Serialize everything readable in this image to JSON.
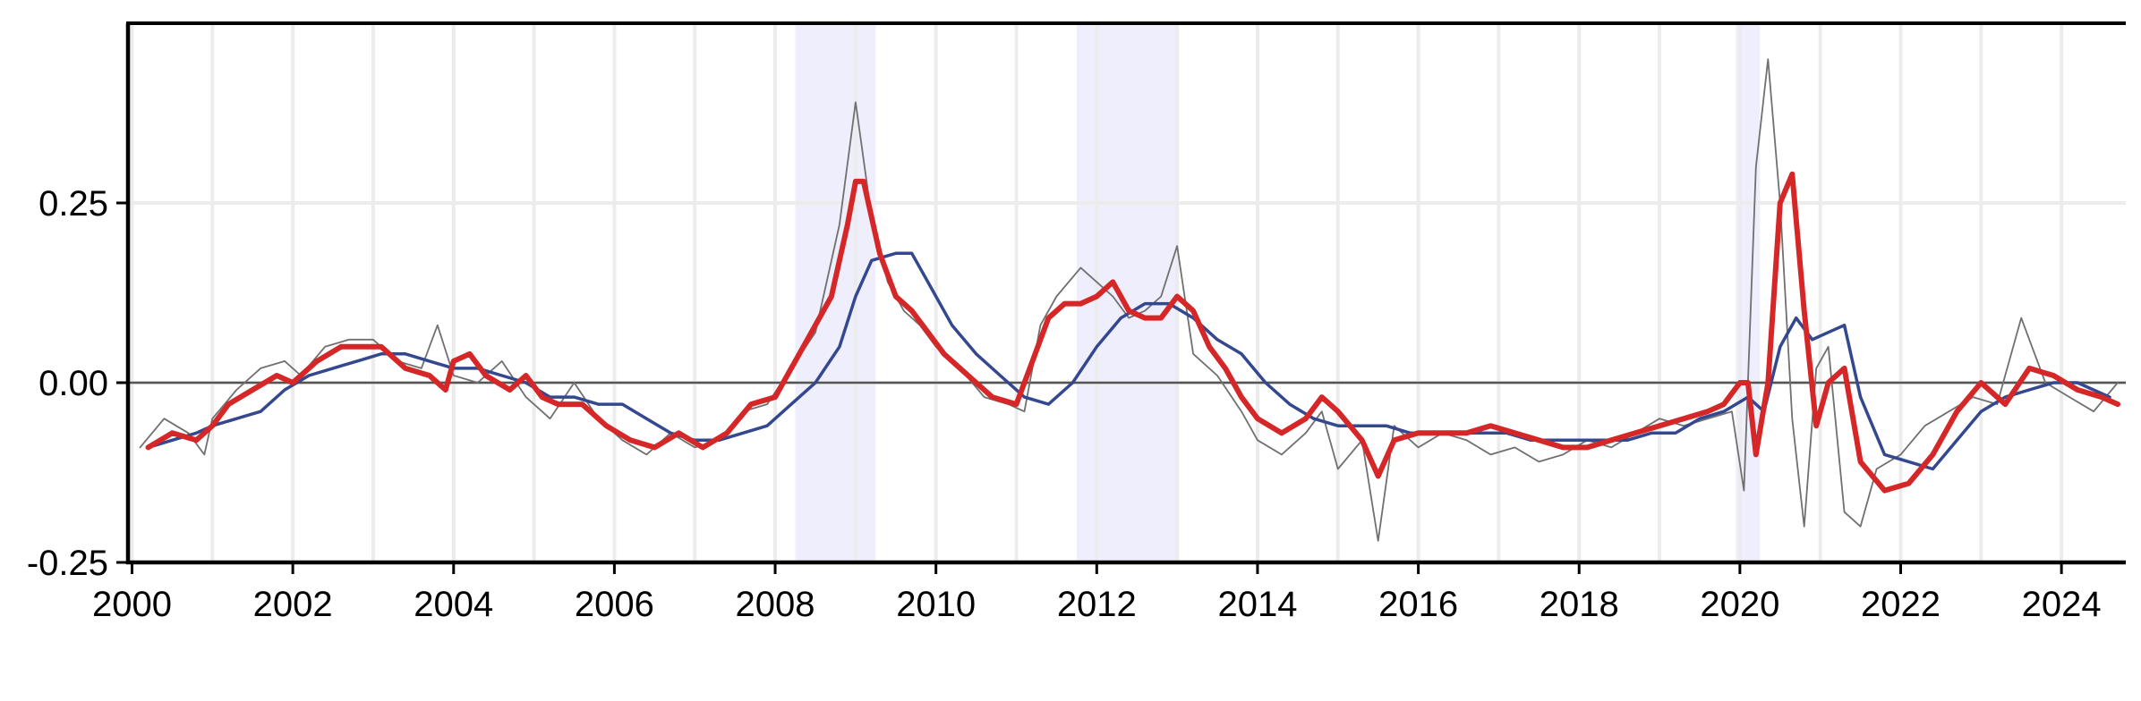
{
  "chart_data": {
    "type": "line",
    "title": "",
    "xlabel": "",
    "ylabel": "",
    "xlim": [
      1999.95,
      2024.8
    ],
    "ylim": [
      -0.25,
      0.5
    ],
    "x_ticks": [
      2000,
      2002,
      2004,
      2006,
      2008,
      2010,
      2012,
      2014,
      2016,
      2018,
      2020,
      2022,
      2024
    ],
    "x_tick_labels": [
      "2000",
      "2002",
      "2004",
      "2006",
      "2008",
      "2010",
      "2012",
      "2014",
      "2016",
      "2018",
      "2020",
      "2022",
      "2024"
    ],
    "y_ticks": [
      -0.25,
      0.0,
      0.25
    ],
    "y_tick_labels": [
      "-0.25",
      "0.00",
      "0.25"
    ],
    "grid": true,
    "zero_line": 0.0,
    "shaded_periods": [
      [
        2008.25,
        2009.25
      ],
      [
        2011.75,
        2013.0
      ],
      [
        2019.95,
        2020.25
      ]
    ],
    "colors": {
      "raw": "#707070",
      "smooth": "#34488f",
      "medium": "#d62728",
      "shade": "#eeeefc",
      "grid": "#ececec",
      "zero": "#555555"
    },
    "series": [
      {
        "role": "raw",
        "x": [
          2000.1,
          2000.4,
          2000.7,
          2000.9,
          2001.0,
          2001.3,
          2001.6,
          2001.9,
          2002.1,
          2002.4,
          2002.7,
          2003.0,
          2003.3,
          2003.6,
          2003.8,
          2004.0,
          2004.3,
          2004.6,
          2004.9,
          2005.2,
          2005.5,
          2005.8,
          2006.1,
          2006.4,
          2006.7,
          2007.0,
          2007.3,
          2007.6,
          2007.9,
          2008.2,
          2008.5,
          2008.8,
          2009.0,
          2009.2,
          2009.4,
          2009.6,
          2009.8,
          2010.0,
          2010.3,
          2010.6,
          2010.9,
          2011.1,
          2011.3,
          2011.5,
          2011.8,
          2012.0,
          2012.2,
          2012.4,
          2012.6,
          2012.8,
          2013.0,
          2013.2,
          2013.5,
          2013.8,
          2014.0,
          2014.3,
          2014.6,
          2014.8,
          2015.0,
          2015.3,
          2015.5,
          2015.7,
          2016.0,
          2016.3,
          2016.6,
          2016.9,
          2017.2,
          2017.5,
          2017.8,
          2018.1,
          2018.4,
          2018.7,
          2019.0,
          2019.3,
          2019.6,
          2019.9,
          2020.05,
          2020.2,
          2020.35,
          2020.5,
          2020.65,
          2020.8,
          2020.95,
          2021.1,
          2021.3,
          2021.5,
          2021.7,
          2022.0,
          2022.3,
          2022.6,
          2022.9,
          2023.2,
          2023.5,
          2023.8,
          2024.1,
          2024.4,
          2024.7
        ],
        "y": [
          -0.09,
          -0.05,
          -0.07,
          -0.1,
          -0.05,
          -0.01,
          0.02,
          0.03,
          0.01,
          0.05,
          0.06,
          0.06,
          0.03,
          0.02,
          0.08,
          0.01,
          0.0,
          0.03,
          -0.02,
          -0.05,
          0.0,
          -0.05,
          -0.08,
          -0.1,
          -0.07,
          -0.09,
          -0.08,
          -0.04,
          -0.03,
          0.02,
          0.07,
          0.22,
          0.39,
          0.23,
          0.14,
          0.1,
          0.08,
          0.05,
          0.02,
          -0.02,
          -0.03,
          -0.04,
          0.08,
          0.12,
          0.16,
          0.14,
          0.12,
          0.09,
          0.1,
          0.12,
          0.19,
          0.04,
          0.01,
          -0.04,
          -0.08,
          -0.1,
          -0.07,
          -0.04,
          -0.12,
          -0.08,
          -0.22,
          -0.06,
          -0.09,
          -0.07,
          -0.08,
          -0.1,
          -0.09,
          -0.11,
          -0.1,
          -0.08,
          -0.09,
          -0.07,
          -0.05,
          -0.06,
          -0.05,
          -0.04,
          -0.15,
          0.3,
          0.45,
          0.25,
          -0.05,
          -0.2,
          0.02,
          0.05,
          -0.18,
          -0.2,
          -0.12,
          -0.1,
          -0.06,
          -0.04,
          -0.02,
          -0.03,
          0.09,
          0.0,
          -0.02,
          -0.04,
          0.0
        ]
      },
      {
        "role": "smooth",
        "x": [
          2000.2,
          2000.5,
          2000.8,
          2001.0,
          2001.3,
          2001.6,
          2001.9,
          2002.2,
          2002.5,
          2002.8,
          2003.1,
          2003.4,
          2003.7,
          2004.0,
          2004.3,
          2004.6,
          2004.9,
          2005.2,
          2005.5,
          2005.8,
          2006.1,
          2006.4,
          2006.7,
          2007.0,
          2007.3,
          2007.6,
          2007.9,
          2008.2,
          2008.5,
          2008.8,
          2009.0,
          2009.2,
          2009.5,
          2009.7,
          2009.9,
          2010.2,
          2010.5,
          2010.8,
          2011.1,
          2011.4,
          2011.7,
          2012.0,
          2012.3,
          2012.6,
          2012.9,
          2013.2,
          2013.5,
          2013.8,
          2014.1,
          2014.4,
          2014.7,
          2015.0,
          2015.3,
          2015.6,
          2015.9,
          2016.2,
          2016.5,
          2016.8,
          2017.1,
          2017.4,
          2017.7,
          2018.0,
          2018.3,
          2018.6,
          2018.9,
          2019.2,
          2019.5,
          2019.8,
          2020.1,
          2020.3,
          2020.5,
          2020.7,
          2020.9,
          2021.1,
          2021.3,
          2021.5,
          2021.8,
          2022.1,
          2022.4,
          2022.7,
          2023.0,
          2023.3,
          2023.6,
          2023.9,
          2024.2,
          2024.6
        ],
        "y": [
          -0.09,
          -0.08,
          -0.07,
          -0.06,
          -0.05,
          -0.04,
          -0.01,
          0.01,
          0.02,
          0.03,
          0.04,
          0.04,
          0.03,
          0.02,
          0.02,
          0.01,
          0.0,
          -0.02,
          -0.02,
          -0.03,
          -0.03,
          -0.05,
          -0.07,
          -0.08,
          -0.08,
          -0.07,
          -0.06,
          -0.03,
          0.0,
          0.05,
          0.12,
          0.17,
          0.18,
          0.18,
          0.14,
          0.08,
          0.04,
          0.01,
          -0.02,
          -0.03,
          0.0,
          0.05,
          0.09,
          0.11,
          0.11,
          0.09,
          0.06,
          0.04,
          0.0,
          -0.03,
          -0.05,
          -0.06,
          -0.06,
          -0.06,
          -0.07,
          -0.07,
          -0.07,
          -0.07,
          -0.07,
          -0.08,
          -0.08,
          -0.08,
          -0.08,
          -0.08,
          -0.07,
          -0.07,
          -0.05,
          -0.04,
          -0.02,
          -0.04,
          0.05,
          0.09,
          0.06,
          0.07,
          0.08,
          -0.02,
          -0.1,
          -0.11,
          -0.12,
          -0.08,
          -0.04,
          -0.02,
          -0.01,
          0.0,
          0.0,
          -0.02
        ]
      },
      {
        "role": "medium",
        "x": [
          2000.2,
          2000.5,
          2000.8,
          2001.0,
          2001.2,
          2001.5,
          2001.8,
          2002.0,
          2002.3,
          2002.6,
          2002.9,
          2003.1,
          2003.4,
          2003.7,
          2003.9,
          2004.0,
          2004.2,
          2004.4,
          2004.7,
          2004.9,
          2005.1,
          2005.3,
          2005.6,
          2005.9,
          2006.2,
          2006.5,
          2006.8,
          2007.1,
          2007.4,
          2007.7,
          2008.0,
          2008.2,
          2008.4,
          2008.7,
          2008.9,
          2009.0,
          2009.1,
          2009.3,
          2009.5,
          2009.7,
          2009.9,
          2010.1,
          2010.4,
          2010.7,
          2011.0,
          2011.2,
          2011.4,
          2011.6,
          2011.8,
          2012.0,
          2012.2,
          2012.4,
          2012.6,
          2012.8,
          2013.0,
          2013.2,
          2013.4,
          2013.6,
          2013.8,
          2014.0,
          2014.3,
          2014.6,
          2014.8,
          2015.0,
          2015.3,
          2015.5,
          2015.7,
          2016.0,
          2016.3,
          2016.6,
          2016.9,
          2017.2,
          2017.5,
          2017.8,
          2018.1,
          2018.4,
          2018.7,
          2019.0,
          2019.3,
          2019.6,
          2019.8,
          2020.0,
          2020.1,
          2020.2,
          2020.35,
          2020.5,
          2020.65,
          2020.8,
          2020.95,
          2021.1,
          2021.3,
          2021.5,
          2021.8,
          2022.1,
          2022.4,
          2022.7,
          2023.0,
          2023.3,
          2023.6,
          2023.9,
          2024.2,
          2024.5,
          2024.7
        ],
        "y": [
          -0.09,
          -0.07,
          -0.08,
          -0.06,
          -0.03,
          -0.01,
          0.01,
          0.0,
          0.03,
          0.05,
          0.05,
          0.05,
          0.02,
          0.01,
          -0.01,
          0.03,
          0.04,
          0.01,
          -0.01,
          0.01,
          -0.02,
          -0.03,
          -0.03,
          -0.06,
          -0.08,
          -0.09,
          -0.07,
          -0.09,
          -0.07,
          -0.03,
          -0.02,
          0.02,
          0.06,
          0.12,
          0.22,
          0.28,
          0.28,
          0.18,
          0.12,
          0.1,
          0.07,
          0.04,
          0.01,
          -0.02,
          -0.03,
          0.03,
          0.09,
          0.11,
          0.11,
          0.12,
          0.14,
          0.1,
          0.09,
          0.09,
          0.12,
          0.1,
          0.05,
          0.02,
          -0.02,
          -0.05,
          -0.07,
          -0.05,
          -0.02,
          -0.04,
          -0.08,
          -0.13,
          -0.08,
          -0.07,
          -0.07,
          -0.07,
          -0.06,
          -0.07,
          -0.08,
          -0.09,
          -0.09,
          -0.08,
          -0.07,
          -0.06,
          -0.05,
          -0.04,
          -0.03,
          0.0,
          0.0,
          -0.1,
          0.0,
          0.25,
          0.29,
          0.1,
          -0.06,
          0.0,
          0.02,
          -0.11,
          -0.15,
          -0.14,
          -0.1,
          -0.04,
          0.0,
          -0.03,
          0.02,
          0.01,
          -0.01,
          -0.02,
          -0.03
        ]
      }
    ]
  }
}
